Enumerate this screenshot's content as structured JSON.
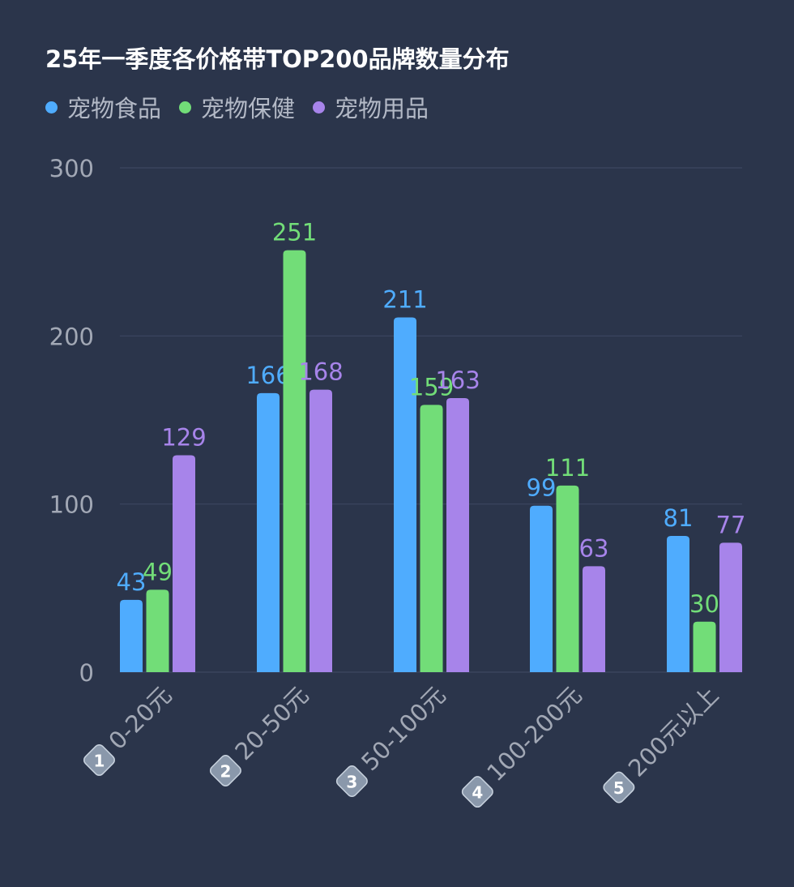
{
  "chart_data": {
    "type": "bar",
    "title": "25年一季度各价格带TOP200品牌数量分布",
    "categories": [
      "0-20元",
      "20-50元",
      "50-100元",
      "100-200元",
      "200元以上"
    ],
    "category_badges": [
      "1",
      "2",
      "3",
      "4",
      "5"
    ],
    "series": [
      {
        "name": "宠物食品",
        "color": "#4facfe",
        "values": [
          43,
          166,
          211,
          99,
          81
        ]
      },
      {
        "name": "宠物保健",
        "color": "#72dd78",
        "values": [
          49,
          251,
          159,
          111,
          30
        ]
      },
      {
        "name": "宠物用品",
        "color": "#a784ea",
        "values": [
          129,
          168,
          163,
          63,
          77
        ]
      }
    ],
    "ylim": [
      0,
      300
    ],
    "yticks": [
      "0",
      "100",
      "200",
      "300"
    ],
    "grid": true,
    "legend_position": "top-left",
    "colors": {
      "background": "#2b354b",
      "grid": "#3d4760",
      "axis_text": "#a2a8b5",
      "title": "#ffffff",
      "badge": "#8a98ab"
    }
  }
}
